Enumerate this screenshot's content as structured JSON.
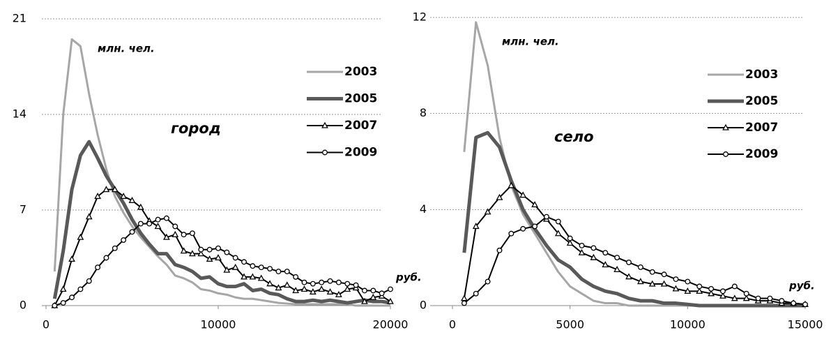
{
  "chart_data": [
    {
      "type": "line",
      "y_label": "млн. чел.",
      "x_label": "руб.",
      "annotation": "город",
      "legend": "upper right",
      "grid": true,
      "xlim": [
        0,
        20000
      ],
      "xticks": [
        0,
        10000,
        20000
      ],
      "ylim": [
        0,
        21
      ],
      "yticks": [
        0,
        7,
        14,
        21
      ],
      "x": [
        500,
        1000,
        1500,
        2000,
        2500,
        3000,
        3500,
        4000,
        4500,
        5000,
        5500,
        6000,
        6500,
        7000,
        7500,
        8000,
        8500,
        9000,
        9500,
        10000,
        10500,
        11000,
        11500,
        12000,
        12500,
        13000,
        13500,
        14000,
        14500,
        15000,
        15500,
        16000,
        16500,
        17000,
        17500,
        18000,
        18500,
        19000,
        19500,
        20000
      ],
      "series": [
        {
          "name": "2003",
          "color": "#a6a6a6",
          "marker": "none",
          "values": [
            2.5,
            14,
            19.5,
            19,
            15.5,
            12.5,
            10,
            8,
            6.8,
            5.8,
            5,
            4.3,
            3.6,
            3,
            2.2,
            2,
            1.7,
            1.2,
            1.1,
            0.9,
            0.8,
            0.6,
            0.5,
            0.5,
            0.4,
            0.3,
            0.2,
            0.15,
            0.1,
            0.1,
            0.1,
            0.1,
            0.1,
            0.1,
            0.1,
            0,
            0,
            0,
            0,
            0
          ]
        },
        {
          "name": "2005",
          "color": "#595959",
          "marker": "none",
          "values": [
            0.5,
            4,
            8.5,
            11,
            12,
            10.8,
            9.5,
            8.5,
            7.5,
            6.3,
            5.3,
            4.5,
            3.8,
            3.8,
            3,
            2.8,
            2.5,
            2,
            2.1,
            1.6,
            1.4,
            1.4,
            1.6,
            1.1,
            1.2,
            0.9,
            0.8,
            0.5,
            0.3,
            0.3,
            0.4,
            0.3,
            0.4,
            0.3,
            0.2,
            0.3,
            0.4,
            0.3,
            0.3,
            0.2
          ]
        },
        {
          "name": "2007",
          "color": "#000000",
          "marker": "triangle",
          "values": [
            0,
            1.2,
            3.4,
            5,
            6.5,
            8,
            8.5,
            8.5,
            8,
            7.7,
            7.2,
            6.2,
            5.8,
            5,
            5.2,
            4,
            3.8,
            3.8,
            3.4,
            3.5,
            2.6,
            2.8,
            2.1,
            2.1,
            2,
            1.6,
            1.3,
            1.5,
            1.1,
            1.2,
            1,
            1.2,
            1,
            0.8,
            1.2,
            1.3,
            0.3,
            0.6,
            0.7,
            0.3
          ]
        },
        {
          "name": "2009",
          "color": "#000000",
          "marker": "circle",
          "values": [
            0,
            0.2,
            0.6,
            1.2,
            1.8,
            2.8,
            3.5,
            4.2,
            4.8,
            5.4,
            6,
            6,
            6.3,
            6.4,
            5.8,
            5.2,
            5.3,
            4.1,
            4.1,
            4.2,
            3.9,
            3.5,
            3.2,
            2.9,
            2.8,
            2.7,
            2.5,
            2.5,
            2.1,
            1.7,
            1.6,
            1.7,
            1.8,
            1.7,
            1.6,
            1.5,
            1.1,
            1.1,
            0.9,
            1.2
          ]
        }
      ]
    },
    {
      "type": "line",
      "y_label": "млн. чел.",
      "x_label": "руб.",
      "annotation": "село",
      "legend": "upper right",
      "grid": true,
      "xlim": [
        0,
        15000
      ],
      "xticks": [
        0,
        5000,
        10000,
        15000
      ],
      "ylim": [
        0,
        12
      ],
      "yticks": [
        0,
        4,
        8,
        12
      ],
      "x": [
        500,
        1000,
        1500,
        2000,
        2500,
        3000,
        3500,
        4000,
        4500,
        5000,
        5500,
        6000,
        6500,
        7000,
        7500,
        8000,
        8500,
        9000,
        9500,
        10000,
        10500,
        11000,
        11500,
        12000,
        12500,
        13000,
        13500,
        14000,
        14500,
        15000
      ],
      "series": [
        {
          "name": "2003",
          "color": "#a6a6a6",
          "marker": "none",
          "values": [
            6.4,
            11.8,
            10,
            7,
            5,
            3.8,
            3,
            2.2,
            1.4,
            0.8,
            0.5,
            0.2,
            0.1,
            0.1,
            0,
            0,
            0,
            0,
            0,
            0,
            0,
            0,
            0,
            0,
            0,
            0,
            0,
            0,
            0,
            0
          ]
        },
        {
          "name": "2005",
          "color": "#595959",
          "marker": "none",
          "values": [
            2.2,
            7,
            7.2,
            6.6,
            5.2,
            4,
            3.2,
            2.5,
            1.9,
            1.6,
            1.1,
            0.8,
            0.6,
            0.5,
            0.3,
            0.2,
            0.2,
            0.1,
            0.1,
            0.05,
            0,
            0,
            0,
            0,
            0,
            0,
            0,
            0,
            0,
            0
          ]
        },
        {
          "name": "2007",
          "color": "#000000",
          "marker": "triangle",
          "values": [
            0.3,
            3.3,
            3.9,
            4.5,
            5,
            4.6,
            4.2,
            3.6,
            3,
            2.6,
            2.2,
            2,
            1.7,
            1.5,
            1.2,
            1,
            0.9,
            0.9,
            0.7,
            0.6,
            0.6,
            0.5,
            0.4,
            0.3,
            0.3,
            0.2,
            0.2,
            0.1,
            0.1,
            0.05
          ]
        },
        {
          "name": "2009",
          "color": "#000000",
          "marker": "circle",
          "values": [
            0.1,
            0.5,
            1,
            2.3,
            3,
            3.2,
            3.3,
            3.7,
            3.5,
            2.8,
            2.5,
            2.4,
            2.2,
            2,
            1.8,
            1.6,
            1.4,
            1.3,
            1.1,
            1,
            0.8,
            0.7,
            0.6,
            0.8,
            0.5,
            0.3,
            0.3,
            0.2,
            0.1,
            0.05
          ]
        }
      ]
    }
  ]
}
